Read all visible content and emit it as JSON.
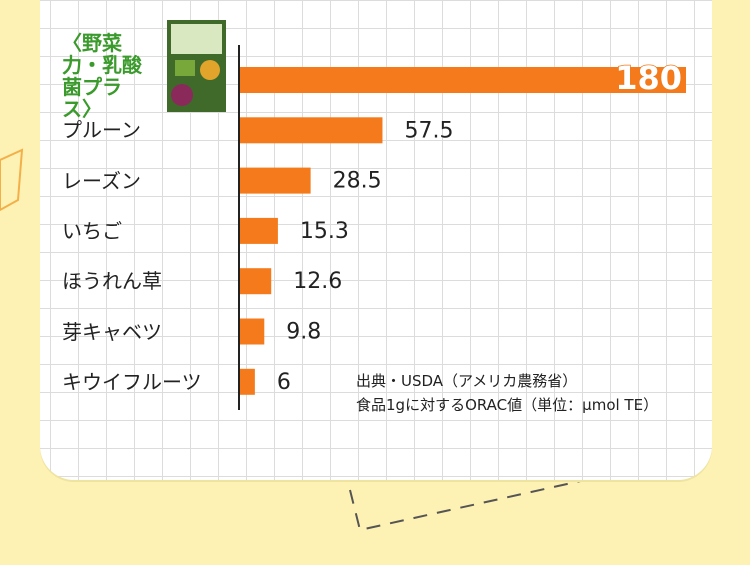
{
  "chart_data": {
    "type": "barh",
    "categories": [
      "〈野菜力・乳酸菌プラス〉",
      "プルーン",
      "レーズン",
      "いちご",
      "ほうれん草",
      "芽キャベツ",
      "キウイフルーツ"
    ],
    "values": [
      180,
      57.5,
      28.5,
      15.3,
      12.6,
      9.8,
      6
    ],
    "color": "#f47a1c",
    "highlight_color": "#3a9a2b",
    "xlim": [
      0,
      180
    ],
    "annotations": [
      "出典・USDA（アメリカ農務省）",
      "食品1gに対するORAC値（単位：μmol TE）"
    ]
  }
}
